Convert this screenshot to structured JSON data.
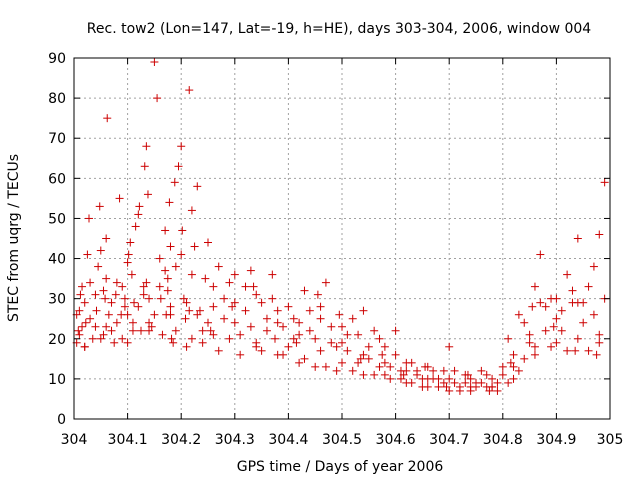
{
  "chart_data": {
    "type": "scatter",
    "title": "Rec. tow2 (Lon=147, Lat=-19, h=HE), days 303-304, 2006, window 004",
    "xlabel": "GPS time / Days of year 2006",
    "ylabel": "STEC from uqrg / TECUs",
    "xlim": [
      304,
      305
    ],
    "ylim": [
      0,
      90
    ],
    "x_ticks": [
      "304",
      "304.1",
      "304.2",
      "304.3",
      "304.4",
      "304.5",
      "304.6",
      "304.7",
      "304.8",
      "304.9",
      "305"
    ],
    "y_ticks": [
      "0",
      "10",
      "20",
      "30",
      "40",
      "50",
      "60",
      "70",
      "80",
      "90"
    ],
    "x_tick_values": [
      304,
      304.1,
      304.2,
      304.3,
      304.4,
      304.5,
      304.6,
      304.7,
      304.8,
      304.9,
      305
    ],
    "y_tick_values": [
      0,
      10,
      20,
      30,
      40,
      50,
      60,
      70,
      80,
      90
    ],
    "grid": true,
    "marker": "plus",
    "color": "#cc0000",
    "series": [
      {
        "x": [
          304.005,
          304.008,
          304.01,
          304.012,
          304.015,
          304.02,
          304.022,
          304.025,
          304.028,
          304.03,
          304.035,
          304.04,
          304.042,
          304.045,
          304.048,
          304.05,
          304.055,
          304.058,
          304.06,
          304.062,
          304.065,
          304.07,
          304.075,
          304.078,
          304.08,
          304.085,
          304.088,
          304.09,
          304.095,
          304.1,
          304.102,
          304.105,
          304.108,
          304.11,
          304.112,
          304.115,
          304.12,
          304.122,
          304.125,
          304.13,
          304.132,
          304.135,
          304.138,
          304.14,
          304.145,
          304.15,
          304.155,
          304.16,
          304.162,
          304.165,
          304.17,
          304.172,
          304.175,
          304.178,
          304.18,
          304.182,
          304.185,
          304.188,
          304.19,
          304.195,
          304.2,
          304.202,
          304.205,
          304.208,
          304.21,
          304.215,
          304.22,
          304.225,
          304.23,
          304.235,
          304.24,
          304.245,
          304.25,
          304.26,
          304.27,
          304.28,
          304.29,
          304.3,
          304.31,
          304.32,
          304.33,
          304.34,
          304.35,
          304.36,
          304.37,
          304.38,
          304.39,
          304.4,
          304.41,
          304.42,
          304.43,
          304.44,
          304.45,
          304.46,
          304.47,
          304.48,
          304.49,
          304.5,
          304.51,
          304.52,
          304.53,
          304.54,
          304.55,
          304.56,
          304.57,
          304.58,
          304.59,
          304.6,
          304.61,
          304.62,
          304.63,
          304.64,
          304.65,
          304.66,
          304.67,
          304.68,
          304.69,
          304.7,
          304.71,
          304.72,
          304.73,
          304.74,
          304.75,
          304.76,
          304.77,
          304.78,
          304.79,
          304.8,
          304.81,
          304.82,
          304.83,
          304.84,
          304.85,
          304.86,
          304.87,
          304.88,
          304.89,
          304.9,
          304.91,
          304.92,
          304.93,
          304.94,
          304.95,
          304.96,
          304.97,
          304.98,
          304.99
        ],
        "y_sets": "see below"
      }
    ],
    "points": [
      [
        304.005,
        19
      ],
      [
        304.008,
        22
      ],
      [
        304.01,
        27
      ],
      [
        304.012,
        31
      ],
      [
        304.015,
        33
      ],
      [
        304.02,
        18
      ],
      [
        304.022,
        24
      ],
      [
        304.025,
        41
      ],
      [
        304.028,
        50
      ],
      [
        304.03,
        34
      ],
      [
        304.035,
        20
      ],
      [
        304.04,
        23
      ],
      [
        304.042,
        27
      ],
      [
        304.045,
        38
      ],
      [
        304.048,
        53
      ],
      [
        304.05,
        42
      ],
      [
        304.055,
        21
      ],
      [
        304.058,
        30
      ],
      [
        304.06,
        45
      ],
      [
        304.062,
        75
      ],
      [
        304.065,
        26
      ],
      [
        304.07,
        22
      ],
      [
        304.075,
        19
      ],
      [
        304.078,
        31
      ],
      [
        304.08,
        34
      ],
      [
        304.085,
        55
      ],
      [
        304.088,
        26
      ],
      [
        304.09,
        20
      ],
      [
        304.095,
        28
      ],
      [
        304.1,
        39
      ],
      [
        304.102,
        41
      ],
      [
        304.105,
        44
      ],
      [
        304.108,
        36
      ],
      [
        304.11,
        24
      ],
      [
        304.112,
        29
      ],
      [
        304.115,
        48
      ],
      [
        304.12,
        51
      ],
      [
        304.122,
        53
      ],
      [
        304.125,
        22
      ],
      [
        304.13,
        33
      ],
      [
        304.132,
        63
      ],
      [
        304.135,
        68
      ],
      [
        304.138,
        56
      ],
      [
        304.14,
        30
      ],
      [
        304.145,
        23
      ],
      [
        304.15,
        89
      ],
      [
        304.155,
        80
      ],
      [
        304.16,
        40
      ],
      [
        304.162,
        30
      ],
      [
        304.165,
        21
      ],
      [
        304.17,
        47
      ],
      [
        304.172,
        26
      ],
      [
        304.175,
        35
      ],
      [
        304.178,
        54
      ],
      [
        304.18,
        43
      ],
      [
        304.182,
        20
      ],
      [
        304.185,
        19
      ],
      [
        304.188,
        59
      ],
      [
        304.19,
        38
      ],
      [
        304.195,
        63
      ],
      [
        304.2,
        68
      ],
      [
        304.202,
        47
      ],
      [
        304.205,
        30
      ],
      [
        304.208,
        25
      ],
      [
        304.21,
        18
      ],
      [
        304.215,
        82
      ],
      [
        304.22,
        52
      ],
      [
        304.225,
        43
      ],
      [
        304.23,
        58
      ],
      [
        304.235,
        27
      ],
      [
        304.24,
        22
      ],
      [
        304.245,
        35
      ],
      [
        304.25,
        44
      ],
      [
        304.26,
        21
      ],
      [
        304.27,
        38
      ],
      [
        304.28,
        30
      ],
      [
        304.29,
        20
      ],
      [
        304.3,
        36
      ],
      [
        304.31,
        16
      ],
      [
        304.32,
        27
      ],
      [
        304.33,
        37
      ],
      [
        304.34,
        18
      ],
      [
        304.35,
        29
      ],
      [
        304.36,
        22
      ],
      [
        304.37,
        36
      ],
      [
        304.38,
        24
      ],
      [
        304.39,
        16
      ],
      [
        304.4,
        28
      ],
      [
        304.41,
        20
      ],
      [
        304.42,
        14
      ],
      [
        304.43,
        32
      ],
      [
        304.44,
        22
      ],
      [
        304.45,
        13
      ],
      [
        304.46,
        25
      ],
      [
        304.47,
        34
      ],
      [
        304.48,
        19
      ],
      [
        304.49,
        12
      ],
      [
        304.5,
        23
      ],
      [
        304.51,
        17
      ],
      [
        304.52,
        12
      ],
      [
        304.53,
        21
      ],
      [
        304.54,
        27
      ],
      [
        304.55,
        15
      ],
      [
        304.56,
        11
      ],
      [
        304.57,
        20
      ],
      [
        304.58,
        14
      ],
      [
        304.59,
        10
      ],
      [
        304.6,
        22
      ],
      [
        304.61,
        12
      ],
      [
        304.62,
        9
      ],
      [
        304.63,
        14
      ],
      [
        304.64,
        11
      ],
      [
        304.65,
        8
      ],
      [
        304.66,
        13
      ],
      [
        304.67,
        10
      ],
      [
        304.68,
        8
      ],
      [
        304.69,
        12
      ],
      [
        304.7,
        18
      ],
      [
        304.71,
        9
      ],
      [
        304.72,
        8
      ],
      [
        304.73,
        11
      ],
      [
        304.74,
        7
      ],
      [
        304.75,
        9
      ],
      [
        304.76,
        12
      ],
      [
        304.77,
        8
      ],
      [
        304.78,
        10
      ],
      [
        304.79,
        7
      ],
      [
        304.8,
        11
      ],
      [
        304.81,
        9
      ],
      [
        304.82,
        16
      ],
      [
        304.83,
        12
      ],
      [
        304.84,
        24
      ],
      [
        304.85,
        19
      ],
      [
        304.86,
        33
      ],
      [
        304.87,
        41
      ],
      [
        304.88,
        28
      ],
      [
        304.89,
        18
      ],
      [
        304.9,
        30
      ],
      [
        304.91,
        22
      ],
      [
        304.92,
        36
      ],
      [
        304.93,
        29
      ],
      [
        304.94,
        45
      ],
      [
        304.95,
        24
      ],
      [
        304.96,
        33
      ],
      [
        304.97,
        38
      ],
      [
        304.98,
        46
      ],
      [
        304.99,
        59
      ]
    ],
    "extra_points": [
      [
        304.005,
        26
      ],
      [
        304.01,
        21
      ],
      [
        304.02,
        29
      ],
      [
        304.03,
        25
      ],
      [
        304.04,
        31
      ],
      [
        304.05,
        20
      ],
      [
        304.06,
        35
      ],
      [
        304.07,
        29
      ],
      [
        304.08,
        24
      ],
      [
        304.09,
        33
      ],
      [
        304.1,
        26
      ],
      [
        304.11,
        22
      ],
      [
        304.12,
        28
      ],
      [
        304.13,
        31
      ],
      [
        304.14,
        24
      ],
      [
        304.15,
        26
      ],
      [
        304.16,
        33
      ],
      [
        304.17,
        37
      ],
      [
        304.18,
        28
      ],
      [
        304.19,
        22
      ],
      [
        304.2,
        41
      ],
      [
        304.21,
        29
      ],
      [
        304.22,
        36
      ],
      [
        304.23,
        26
      ],
      [
        304.24,
        19
      ],
      [
        304.25,
        24
      ],
      [
        304.26,
        33
      ],
      [
        304.27,
        17
      ],
      [
        304.28,
        25
      ],
      [
        304.29,
        34
      ],
      [
        304.3,
        29
      ],
      [
        304.31,
        21
      ],
      [
        304.32,
        33
      ],
      [
        304.33,
        23
      ],
      [
        304.34,
        31
      ],
      [
        304.35,
        17
      ],
      [
        304.36,
        25
      ],
      [
        304.37,
        30
      ],
      [
        304.38,
        16
      ],
      [
        304.39,
        23
      ],
      [
        304.4,
        18
      ],
      [
        304.41,
        25
      ],
      [
        304.42,
        21
      ],
      [
        304.43,
        15
      ],
      [
        304.44,
        27
      ],
      [
        304.45,
        20
      ],
      [
        304.46,
        17
      ],
      [
        304.47,
        13
      ],
      [
        304.48,
        23
      ],
      [
        304.49,
        18
      ],
      [
        304.5,
        14
      ],
      [
        304.51,
        21
      ],
      [
        304.52,
        25
      ],
      [
        304.53,
        14
      ],
      [
        304.54,
        11
      ],
      [
        304.55,
        18
      ],
      [
        304.56,
        22
      ],
      [
        304.57,
        13
      ],
      [
        304.58,
        18
      ],
      [
        304.59,
        13
      ],
      [
        304.6,
        16
      ],
      [
        304.61,
        10
      ],
      [
        304.62,
        14
      ],
      [
        304.63,
        9
      ],
      [
        304.64,
        12
      ],
      [
        304.65,
        10
      ],
      [
        304.66,
        8
      ],
      [
        304.67,
        12
      ],
      [
        304.68,
        10
      ],
      [
        304.69,
        9
      ],
      [
        304.7,
        7
      ],
      [
        304.71,
        12
      ],
      [
        304.72,
        7
      ],
      [
        304.73,
        9
      ],
      [
        304.74,
        10
      ],
      [
        304.75,
        8
      ],
      [
        304.76,
        9
      ],
      [
        304.77,
        11
      ],
      [
        304.78,
        8
      ],
      [
        304.79,
        9
      ],
      [
        304.8,
        13
      ],
      [
        304.81,
        20
      ],
      [
        304.82,
        10
      ],
      [
        304.83,
        26
      ],
      [
        304.84,
        15
      ],
      [
        304.85,
        21
      ],
      [
        304.86,
        16
      ],
      [
        304.87,
        29
      ],
      [
        304.88,
        22
      ],
      [
        304.89,
        30
      ],
      [
        304.9,
        19
      ],
      [
        304.91,
        27
      ],
      [
        304.92,
        17
      ],
      [
        304.93,
        32
      ],
      [
        304.94,
        20
      ],
      [
        304.95,
        29
      ],
      [
        304.96,
        17
      ],
      [
        304.97,
        26
      ],
      [
        304.98,
        21
      ],
      [
        304.99,
        30
      ],
      [
        304.02,
        18
      ],
      [
        304.06,
        23
      ],
      [
        304.1,
        19
      ],
      [
        304.14,
        22
      ],
      [
        304.18,
        26
      ],
      [
        304.22,
        20
      ],
      [
        304.26,
        28
      ],
      [
        304.3,
        24
      ],
      [
        304.34,
        19
      ],
      [
        304.38,
        27
      ],
      [
        304.42,
        24
      ],
      [
        304.46,
        28
      ],
      [
        304.5,
        19
      ],
      [
        304.54,
        16
      ],
      [
        304.58,
        11
      ],
      [
        304.62,
        12
      ],
      [
        304.66,
        10
      ],
      [
        304.7,
        10
      ],
      [
        304.74,
        8
      ],
      [
        304.78,
        8
      ],
      [
        304.82,
        13
      ],
      [
        304.86,
        18
      ],
      [
        304.9,
        25
      ],
      [
        304.94,
        29
      ],
      [
        304.98,
        19
      ],
      [
        304.015,
        23
      ],
      [
        304.055,
        32
      ],
      [
        304.095,
        30
      ],
      [
        304.135,
        34
      ],
      [
        304.175,
        32
      ],
      [
        304.215,
        27
      ],
      [
        304.255,
        22
      ],
      [
        304.295,
        28
      ],
      [
        304.335,
        33
      ],
      [
        304.375,
        20
      ],
      [
        304.415,
        19
      ],
      [
        304.455,
        31
      ],
      [
        304.495,
        26
      ],
      [
        304.535,
        15
      ],
      [
        304.575,
        16
      ],
      [
        304.615,
        11
      ],
      [
        304.655,
        13
      ],
      [
        304.695,
        8
      ],
      [
        304.735,
        11
      ],
      [
        304.775,
        7
      ],
      [
        304.815,
        14
      ],
      [
        304.855,
        28
      ],
      [
        304.895,
        23
      ],
      [
        304.935,
        17
      ],
      [
        304.975,
        16
      ]
    ]
  }
}
